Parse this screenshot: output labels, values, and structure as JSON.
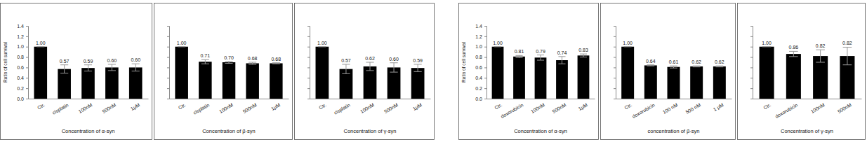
{
  "chart_data": [
    {
      "type": "bar",
      "categories": [
        "Ctr.",
        "cisplatin",
        "100nM",
        "500nM",
        "1μM"
      ],
      "values": [
        1.0,
        0.57,
        0.59,
        0.6,
        0.6
      ],
      "value_labels": [
        "1.00",
        "0.57",
        "0.59",
        "0.60",
        "0.60"
      ],
      "errors": [
        0,
        0.08,
        0.06,
        0.06,
        0.07
      ],
      "data_labels": true,
      "color": "#000000",
      "xlabel": "Concentration of α-syn",
      "ylabel": "Ratio of cell survival",
      "ylim": [
        0,
        1.4
      ],
      "yticks": [
        {
          "value": 0,
          "label": "0.0"
        },
        {
          "value": 0.2,
          "label": "0.2"
        },
        {
          "value": 0.4,
          "label": "0.4"
        },
        {
          "value": 0.6,
          "label": "0.6"
        },
        {
          "value": 0.8,
          "label": "0.8"
        },
        {
          "value": 1.0,
          "label": "1.0"
        },
        {
          "value": 1.2,
          "label": "1.2"
        },
        {
          "value": 1.4,
          "label": "1.4"
        }
      ],
      "tick_labels": true
    },
    {
      "type": "bar",
      "categories": [
        "Ctr.",
        "cisplatin",
        "100nM",
        "500nM",
        "1μM"
      ],
      "values": [
        1.0,
        0.71,
        0.7,
        0.68,
        0.68
      ],
      "value_labels": [
        "1.00",
        "0.71",
        "0.70",
        "0.68",
        "0.68"
      ],
      "errors": [
        0,
        0.04,
        0.02,
        0.02,
        0.01
      ],
      "data_labels": true,
      "color": "#000000",
      "xlabel": "Concentration of β-syn",
      "ylim": [
        0,
        1.4
      ],
      "yticks": [
        0,
        0.2,
        0.4,
        0.6,
        0.8,
        1,
        1.2,
        1.4
      ],
      "tick_labels": "x"
    },
    {
      "type": "bar",
      "categories": [
        "Ctr.",
        "cisplatin",
        "100nM",
        "500nM",
        "1μM"
      ],
      "values": [
        1.0,
        0.57,
        0.62,
        0.6,
        0.59
      ],
      "value_labels": [
        "1.00",
        "0.57",
        "0.62",
        "0.60",
        "0.59"
      ],
      "errors": [
        0,
        0.09,
        0.08,
        0.09,
        0.07
      ],
      "data_labels": true,
      "color": "#000000",
      "xlabel": "Concentration of γ-syn",
      "ylim": [
        0,
        1.4
      ],
      "yticks": [
        0,
        0.2,
        0.4,
        0.6,
        0.8,
        1,
        1.2,
        1.4
      ],
      "tick_labels": "x"
    },
    {
      "type": "bar",
      "categories": [
        "Ctr.",
        "doxorubicin",
        "100nM",
        "500nM",
        "1μM"
      ],
      "values": [
        1.0,
        0.81,
        0.79,
        0.74,
        0.83
      ],
      "value_labels": [
        "1.00",
        "0.81",
        "0.79",
        "0.74",
        "0.83"
      ],
      "errors": [
        0,
        0.02,
        0.05,
        0.07,
        0.03
      ],
      "data_labels": true,
      "color": "#000000",
      "xlabel": "Concentration of α-syn",
      "ylabel": "Ratio of cell survival",
      "ylim": [
        0,
        1.4
      ],
      "yticks": [
        {
          "value": 0,
          "label": "0.0"
        },
        {
          "value": 0.2,
          "label": "0.2"
        },
        {
          "value": 0.4,
          "label": "0.4"
        },
        {
          "value": 0.6,
          "label": "0.6"
        },
        {
          "value": 0.8,
          "label": "0.8"
        },
        {
          "value": 1.0,
          "label": "1.0"
        },
        {
          "value": 1.2,
          "label": "1.2"
        },
        {
          "value": 1.4,
          "label": "1.4"
        }
      ],
      "tick_labels": true
    },
    {
      "type": "bar",
      "categories": [
        "Ctr.",
        "doxorubicin",
        "100 nM",
        "500 nM",
        "1 μM"
      ],
      "values": [
        1.0,
        0.64,
        0.61,
        0.62,
        0.62
      ],
      "value_labels": [
        "1.00",
        "0.64",
        "0.61",
        "0.62",
        "0.62"
      ],
      "errors": [
        0,
        0.01,
        0.02,
        0.01,
        0.01
      ],
      "data_labels": true,
      "color": "#000000",
      "xlabel": "concentration of β-syn",
      "ylim": [
        0,
        1.4
      ],
      "yticks": [
        0,
        0.2,
        0.4,
        0.6,
        0.8,
        1,
        1.2,
        1.4
      ],
      "tick_labels": "x"
    },
    {
      "type": "bar",
      "categories": [
        "Ctr.",
        "doxorubicin",
        "100nM",
        "500nM"
      ],
      "values": [
        1.0,
        0.86,
        0.82,
        0.82
      ],
      "value_labels": [
        "1.00",
        "0.86",
        "0.82",
        "0.82"
      ],
      "errors": [
        0,
        0.05,
        0.12,
        0.17
      ],
      "data_labels": true,
      "color": "#000000",
      "xlabel": "Concentration of γ-syn",
      "ylim": [
        0,
        1.4
      ],
      "yticks": [
        0,
        0.2,
        0.4,
        0.6,
        0.8,
        1,
        1.2,
        1.4
      ],
      "tick_labels": "x"
    }
  ]
}
